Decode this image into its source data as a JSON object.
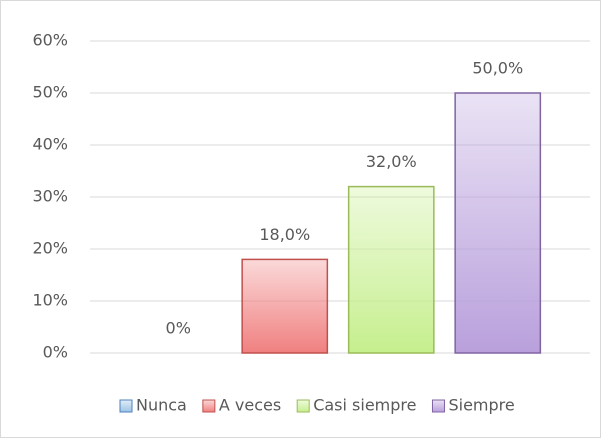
{
  "chart_data": {
    "type": "bar",
    "categories": [
      "Nunca",
      "A veces",
      "Casi siempre",
      "Siempre"
    ],
    "values": [
      0,
      18,
      32,
      50
    ],
    "value_labels": [
      "0%",
      "18,0%",
      "32,0%",
      "50,0%"
    ],
    "colors": [
      "#9dc3e6",
      "#f08080",
      "#c6ef8e",
      "#b9a0dc"
    ],
    "border_colors": [
      "#4f81bd",
      "#c0504d",
      "#9bbb59",
      "#8064a2"
    ],
    "ylim": [
      0,
      60
    ],
    "yticks": [
      {
        "value": 0,
        "label": "0%"
      },
      {
        "value": 10,
        "label": "10%"
      },
      {
        "value": 20,
        "label": "20%"
      },
      {
        "value": 30,
        "label": "30%"
      },
      {
        "value": 40,
        "label": "40%"
      },
      {
        "value": 50,
        "label": "50%"
      },
      {
        "value": 60,
        "label": "60%"
      }
    ],
    "grid": true,
    "legend": "bottom"
  }
}
